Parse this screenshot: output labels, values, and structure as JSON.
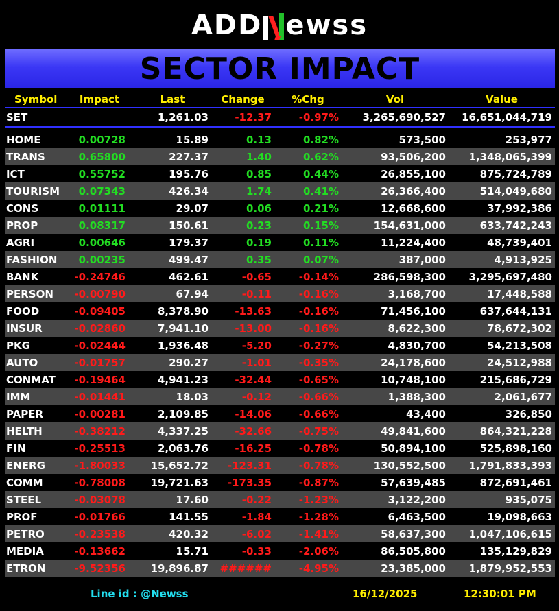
{
  "logo": {
    "left": "ADD",
    "mid": "N",
    "right": "ewss"
  },
  "banner": {
    "title": "SECTOR IMPACT"
  },
  "headers": [
    "Symbol",
    "Impact",
    "Last",
    "Change",
    "%Chg",
    "Vol",
    "Value"
  ],
  "set_row": {
    "symbol": "SET",
    "impact": "",
    "last": "1,261.03",
    "change": "-12.37",
    "pct": "-0.97%",
    "vol": "3,265,690,527",
    "value": "16,651,044,719",
    "dir": "down"
  },
  "rows": [
    {
      "symbol": "HOME",
      "impact": "0.00728",
      "last": "15.89",
      "change": "0.13",
      "pct": "0.82%",
      "vol": "573,500",
      "value": "253,977",
      "dir": "up"
    },
    {
      "symbol": "TRANS",
      "impact": "0.65800",
      "last": "227.37",
      "change": "1.40",
      "pct": "0.62%",
      "vol": "93,506,200",
      "value": "1,348,065,399",
      "dir": "up"
    },
    {
      "symbol": "ICT",
      "impact": "0.55752",
      "last": "195.76",
      "change": "0.85",
      "pct": "0.44%",
      "vol": "26,855,100",
      "value": "875,724,789",
      "dir": "up"
    },
    {
      "symbol": "TOURISM",
      "impact": "0.07343",
      "last": "426.34",
      "change": "1.74",
      "pct": "0.41%",
      "vol": "26,366,400",
      "value": "514,049,680",
      "dir": "up"
    },
    {
      "symbol": "CONS",
      "impact": "0.01111",
      "last": "29.07",
      "change": "0.06",
      "pct": "0.21%",
      "vol": "12,668,600",
      "value": "37,992,386",
      "dir": "up"
    },
    {
      "symbol": "PROP",
      "impact": "0.08317",
      "last": "150.61",
      "change": "0.23",
      "pct": "0.15%",
      "vol": "154,631,000",
      "value": "633,742,243",
      "dir": "up"
    },
    {
      "symbol": "AGRI",
      "impact": "0.00646",
      "last": "179.37",
      "change": "0.19",
      "pct": "0.11%",
      "vol": "11,224,400",
      "value": "48,739,401",
      "dir": "up"
    },
    {
      "symbol": "FASHION",
      "impact": "0.00235",
      "last": "499.47",
      "change": "0.35",
      "pct": "0.07%",
      "vol": "387,000",
      "value": "4,913,925",
      "dir": "up"
    },
    {
      "symbol": "BANK",
      "impact": "-0.24746",
      "last": "462.61",
      "change": "-0.65",
      "pct": "-0.14%",
      "vol": "286,598,300",
      "value": "3,295,697,480",
      "dir": "down"
    },
    {
      "symbol": "PERSON",
      "impact": "-0.00790",
      "last": "67.94",
      "change": "-0.11",
      "pct": "-0.16%",
      "vol": "3,168,700",
      "value": "17,448,588",
      "dir": "down"
    },
    {
      "symbol": "FOOD",
      "impact": "-0.09405",
      "last": "8,378.90",
      "change": "-13.63",
      "pct": "-0.16%",
      "vol": "71,456,100",
      "value": "637,644,131",
      "dir": "down"
    },
    {
      "symbol": "INSUR",
      "impact": "-0.02860",
      "last": "7,941.10",
      "change": "-13.00",
      "pct": "-0.16%",
      "vol": "8,622,300",
      "value": "78,672,302",
      "dir": "down"
    },
    {
      "symbol": "PKG",
      "impact": "-0.02444",
      "last": "1,936.48",
      "change": "-5.20",
      "pct": "-0.27%",
      "vol": "4,830,700",
      "value": "54,213,508",
      "dir": "down"
    },
    {
      "symbol": "AUTO",
      "impact": "-0.01757",
      "last": "290.27",
      "change": "-1.01",
      "pct": "-0.35%",
      "vol": "24,178,600",
      "value": "24,512,988",
      "dir": "down"
    },
    {
      "symbol": "CONMAT",
      "impact": "-0.19464",
      "last": "4,941.23",
      "change": "-32.44",
      "pct": "-0.65%",
      "vol": "10,748,100",
      "value": "215,686,729",
      "dir": "down"
    },
    {
      "symbol": "IMM",
      "impact": "-0.01441",
      "last": "18.03",
      "change": "-0.12",
      "pct": "-0.66%",
      "vol": "1,388,300",
      "value": "2,061,677",
      "dir": "down"
    },
    {
      "symbol": "PAPER",
      "impact": "-0.00281",
      "last": "2,109.85",
      "change": "-14.06",
      "pct": "-0.66%",
      "vol": "43,400",
      "value": "326,850",
      "dir": "down"
    },
    {
      "symbol": "HELTH",
      "impact": "-0.38212",
      "last": "4,337.25",
      "change": "-32.66",
      "pct": "-0.75%",
      "vol": "49,841,600",
      "value": "864,321,228",
      "dir": "down"
    },
    {
      "symbol": "FIN",
      "impact": "-0.25513",
      "last": "2,063.76",
      "change": "-16.25",
      "pct": "-0.78%",
      "vol": "50,894,100",
      "value": "525,898,160",
      "dir": "down"
    },
    {
      "symbol": "ENERG",
      "impact": "-1.80033",
      "last": "15,652.72",
      "change": "-123.31",
      "pct": "-0.78%",
      "vol": "130,552,500",
      "value": "1,791,833,393",
      "dir": "down"
    },
    {
      "symbol": "COMM",
      "impact": "-0.78008",
      "last": "19,721.63",
      "change": "-173.35",
      "pct": "-0.87%",
      "vol": "57,639,485",
      "value": "872,691,461",
      "dir": "down"
    },
    {
      "symbol": "STEEL",
      "impact": "-0.03078",
      "last": "17.60",
      "change": "-0.22",
      "pct": "-1.23%",
      "vol": "3,122,200",
      "value": "935,075",
      "dir": "down"
    },
    {
      "symbol": "PROF",
      "impact": "-0.01766",
      "last": "141.55",
      "change": "-1.84",
      "pct": "-1.28%",
      "vol": "6,463,500",
      "value": "19,098,663",
      "dir": "down"
    },
    {
      "symbol": "PETRO",
      "impact": "-0.23538",
      "last": "420.32",
      "change": "-6.02",
      "pct": "-1.41%",
      "vol": "58,637,300",
      "value": "1,047,106,615",
      "dir": "down"
    },
    {
      "symbol": "MEDIA",
      "impact": "-0.13662",
      "last": "15.71",
      "change": "-0.33",
      "pct": "-2.06%",
      "vol": "86,505,800",
      "value": "135,129,829",
      "dir": "down"
    },
    {
      "symbol": "ETRON",
      "impact": "-9.52356",
      "last": "19,896.87",
      "change": "######",
      "pct": "-4.95%",
      "vol": "23,385,000",
      "value": "1,879,952,553",
      "dir": "down"
    }
  ],
  "footer": {
    "line_id": "Line id  : @Newss",
    "date": "16/12/2025",
    "time": "12:30:01 PM"
  },
  "colors": {
    "up": "#22dd22",
    "down": "#ff1a1a",
    "header": "#ffee00",
    "banner": "#3b37f5",
    "alt_row": "#474747",
    "footer_line": "#22ddee"
  }
}
